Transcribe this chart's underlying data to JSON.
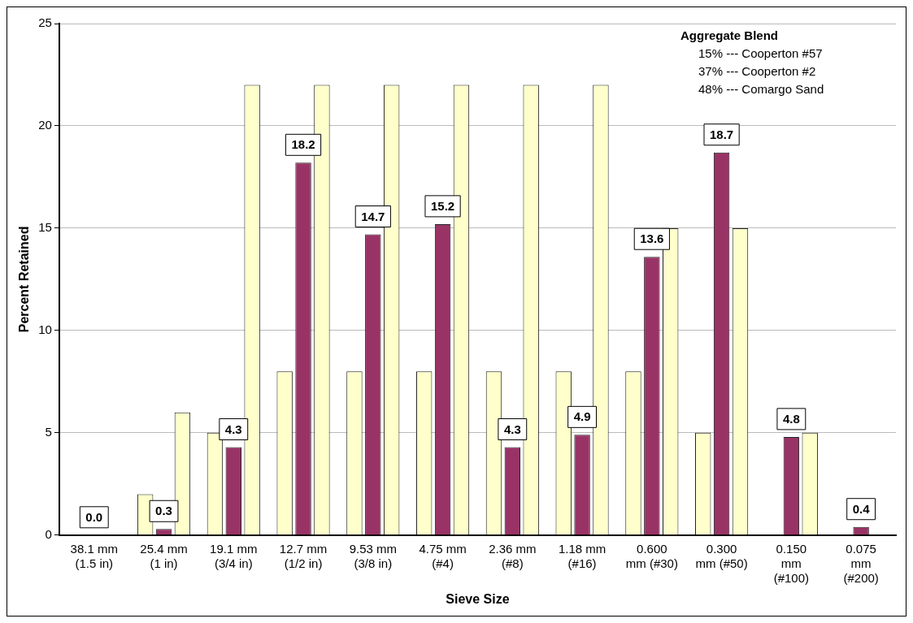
{
  "chart_data": {
    "type": "bar",
    "xlabel": "Sieve Size",
    "ylabel": "Percent Retained",
    "categories": [
      "38.1 mm\n(1.5 in)",
      "25.4 mm\n(1 in)",
      "19.1 mm\n(3/4 in)",
      "12.7 mm\n(1/2 in)",
      "9.53 mm\n(3/8 in)",
      "4.75 mm\n(#4)",
      "2.36 mm\n(#8)",
      "1.18 mm\n(#16)",
      "0.600\nmm (#30)",
      "0.300\nmm (#50)",
      "0.150\nmm\n(#100)",
      "0.075\nmm\n(#200)"
    ],
    "series": [
      {
        "color": "#ffffcc",
        "values": [
          null,
          2,
          5,
          8,
          8,
          8,
          8,
          8,
          8,
          5,
          null,
          null
        ]
      },
      {
        "color": "#993366",
        "values": [
          0.0,
          0.3,
          4.3,
          18.2,
          14.7,
          15.2,
          4.3,
          4.9,
          13.6,
          18.7,
          4.8,
          0.4
        ],
        "value_labels": [
          "0.0",
          "0.3",
          "4.3",
          "18.2",
          "14.7",
          "15.2",
          "4.3",
          "4.9",
          "13.6",
          "18.7",
          "4.8",
          "0.4"
        ]
      },
      {
        "color": "#ffffcc",
        "values": [
          null,
          6,
          22,
          22,
          22,
          22,
          22,
          22,
          15,
          15,
          5,
          null
        ]
      }
    ],
    "ylim": [
      0,
      25
    ],
    "yticks": [
      0,
      5,
      10,
      15,
      20,
      25
    ],
    "grid": "y",
    "legend": false,
    "annotations": [
      "Aggregate Blend",
      "15% --- Cooperton #57",
      "37% --- Cooperton #2",
      "48% --- Comargo Sand"
    ]
  }
}
